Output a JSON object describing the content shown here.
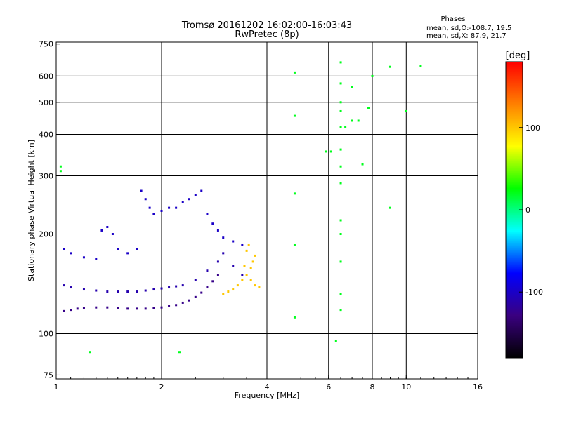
{
  "chart_data": {
    "type": "scatter",
    "title": "Tromsø 20161202 16:02:00-16:03:43",
    "subtitle": "RwPretec (8p)",
    "xlabel": "Frequency [MHz]",
    "ylabel": "Stationary phase Virtual Height [km]",
    "x_scale": "log",
    "y_scale": "log",
    "xlim": [
      1,
      16
    ],
    "ylim": [
      73,
      760
    ],
    "xticks": [
      {
        "v": 1,
        "label": "1"
      },
      {
        "v": 2,
        "label": "2"
      },
      {
        "v": 4,
        "label": "4"
      },
      {
        "v": 6,
        "label": "6"
      },
      {
        "v": 8,
        "label": "8"
      },
      {
        "v": 10,
        "label": "10"
      },
      {
        "v": 16,
        "label": "16"
      }
    ],
    "yticks": [
      {
        "v": 75,
        "label": "75"
      },
      {
        "v": 100,
        "label": "100"
      },
      {
        "v": 200,
        "label": "200"
      },
      {
        "v": 300,
        "label": "300"
      },
      {
        "v": 400,
        "label": "400"
      },
      {
        "v": 500,
        "label": "500"
      },
      {
        "v": 600,
        "label": "600"
      },
      {
        "v": 750,
        "label": "750"
      }
    ],
    "grid_x": [
      2,
      4,
      6,
      8,
      10
    ],
    "grid_y": [
      100,
      200,
      300,
      400,
      500,
      600
    ],
    "grid": true,
    "phases_box": {
      "title": "Phases",
      "line1": "mean, sd,O:-108.7, 19.5",
      "line2": "mean, sd,X:  87.9, 21.7"
    },
    "colorbar": {
      "label": "[deg]",
      "range": [
        -180,
        180
      ],
      "ticks": [
        {
          "v": 100,
          "label": "100"
        },
        {
          "v": 0,
          "label": "0"
        },
        {
          "v": -100,
          "label": "-100"
        }
      ],
      "colors": [
        "#000000",
        "#3a0080",
        "#0000ff",
        "#00ffff",
        "#00ff00",
        "#ffff00",
        "#ff8000",
        "#ff0000"
      ]
    },
    "series": [
      {
        "desc_role": "lower trace",
        "color_phase": -125,
        "points": [
          [
            1.05,
            117
          ],
          [
            1.1,
            118
          ],
          [
            1.15,
            119
          ],
          [
            1.2,
            119.5
          ],
          [
            1.3,
            120
          ],
          [
            1.4,
            120
          ],
          [
            1.5,
            119.5
          ],
          [
            1.6,
            119
          ],
          [
            1.7,
            119
          ],
          [
            1.8,
            119
          ],
          [
            1.9,
            119.5
          ],
          [
            2.0,
            120
          ],
          [
            2.1,
            121
          ],
          [
            2.2,
            122
          ],
          [
            2.3,
            124
          ],
          [
            2.4,
            126
          ],
          [
            2.5,
            129
          ],
          [
            2.6,
            133
          ],
          [
            2.7,
            138
          ],
          [
            2.8,
            144
          ],
          [
            2.9,
            150
          ]
        ]
      },
      {
        "desc_role": "middle band",
        "color_phase": -110,
        "points": [
          [
            1.05,
            140
          ],
          [
            1.1,
            138
          ],
          [
            1.2,
            136
          ],
          [
            1.3,
            135
          ],
          [
            1.4,
            134
          ],
          [
            1.5,
            134
          ],
          [
            1.6,
            134
          ],
          [
            1.7,
            134
          ],
          [
            1.8,
            135
          ],
          [
            1.9,
            136
          ],
          [
            2.0,
            137
          ],
          [
            2.1,
            138
          ],
          [
            2.2,
            139
          ],
          [
            2.3,
            140
          ],
          [
            2.5,
            145
          ],
          [
            2.7,
            155
          ],
          [
            2.9,
            165
          ],
          [
            3.0,
            175
          ],
          [
            3.2,
            160
          ],
          [
            3.4,
            150
          ]
        ]
      },
      {
        "desc_role": "upper scatter",
        "color_phase": -100,
        "points": [
          [
            1.05,
            180
          ],
          [
            1.1,
            175
          ],
          [
            1.2,
            170
          ],
          [
            1.3,
            168
          ],
          [
            1.35,
            205
          ],
          [
            1.4,
            210
          ],
          [
            1.45,
            200
          ],
          [
            1.5,
            180
          ],
          [
            1.6,
            175
          ],
          [
            1.7,
            180
          ],
          [
            1.75,
            270
          ],
          [
            1.8,
            255
          ],
          [
            1.85,
            240
          ],
          [
            1.9,
            230
          ],
          [
            2.0,
            235
          ],
          [
            2.1,
            240
          ],
          [
            2.2,
            240
          ],
          [
            2.3,
            250
          ],
          [
            2.4,
            255
          ],
          [
            2.5,
            262
          ],
          [
            2.6,
            270
          ],
          [
            2.7,
            230
          ],
          [
            2.8,
            215
          ],
          [
            2.9,
            205
          ],
          [
            3.0,
            195
          ],
          [
            3.2,
            190
          ],
          [
            3.4,
            185
          ]
        ]
      },
      {
        "desc_role": "X-mode trace",
        "color_phase": 100,
        "points": [
          [
            3.0,
            132
          ],
          [
            3.1,
            134
          ],
          [
            3.2,
            136
          ],
          [
            3.3,
            140
          ],
          [
            3.4,
            145
          ],
          [
            3.5,
            150
          ],
          [
            3.6,
            158
          ],
          [
            3.65,
            165
          ],
          [
            3.7,
            172
          ],
          [
            3.55,
            185
          ],
          [
            3.5,
            178
          ],
          [
            3.45,
            160
          ],
          [
            3.6,
            145
          ],
          [
            3.7,
            140
          ],
          [
            3.8,
            138
          ]
        ]
      },
      {
        "desc_role": "sparse echoes",
        "color_phase": 20,
        "points": [
          [
            1.03,
            320
          ],
          [
            1.03,
            310
          ],
          [
            1.25,
            88
          ],
          [
            2.25,
            88
          ],
          [
            4.8,
            615
          ],
          [
            4.8,
            455
          ],
          [
            4.8,
            265
          ],
          [
            4.8,
            185
          ],
          [
            4.8,
            112
          ],
          [
            5.9,
            355
          ],
          [
            6.1,
            355
          ],
          [
            6.3,
            95
          ],
          [
            6.5,
            660
          ],
          [
            6.5,
            570
          ],
          [
            6.5,
            500
          ],
          [
            6.5,
            470
          ],
          [
            6.5,
            420
          ],
          [
            6.5,
            360
          ],
          [
            6.5,
            320
          ],
          [
            6.5,
            285
          ],
          [
            6.5,
            220
          ],
          [
            6.5,
            200
          ],
          [
            6.5,
            165
          ],
          [
            6.5,
            132
          ],
          [
            6.5,
            118
          ],
          [
            6.7,
            420
          ],
          [
            7.0,
            440
          ],
          [
            7.0,
            555
          ],
          [
            7.3,
            440
          ],
          [
            7.5,
            325
          ],
          [
            7.8,
            480
          ],
          [
            8.0,
            600
          ],
          [
            9.0,
            640
          ],
          [
            9.0,
            240
          ],
          [
            10.0,
            470
          ],
          [
            11.0,
            645
          ]
        ]
      }
    ]
  }
}
